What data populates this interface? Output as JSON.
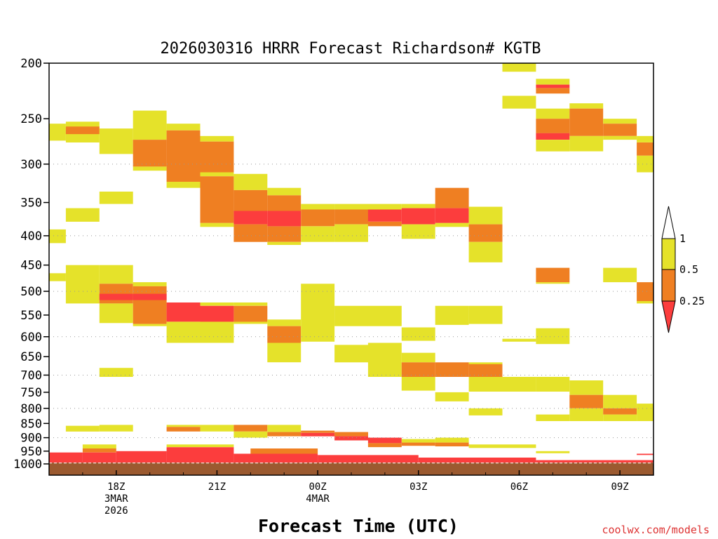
{
  "chart_data": {
    "type": "heatmap",
    "title": "2026030316 HRRR Forecast Richardson# KGTB",
    "xlabel": "Forecast Time (UTC)",
    "ylabel": "",
    "credit": "coolwx.com/models",
    "y_axis": {
      "scale": "log-pressure",
      "inverted": true,
      "range": [
        1000,
        200
      ],
      "ticks": [
        200,
        250,
        300,
        350,
        400,
        450,
        500,
        550,
        600,
        650,
        700,
        750,
        800,
        850,
        900,
        950,
        1000
      ],
      "gridlines": [
        300,
        400,
        500,
        600,
        700,
        800,
        900
      ]
    },
    "x_axis": {
      "start_hour": 16,
      "end_hour": 34,
      "ticks": [
        {
          "hour": 18,
          "lines": [
            "18Z",
            "3MAR",
            "2026"
          ]
        },
        {
          "hour": 21,
          "lines": [
            "21Z"
          ]
        },
        {
          "hour": 24,
          "lines": [
            "00Z",
            "4MAR"
          ]
        },
        {
          "hour": 27,
          "lines": [
            "03Z"
          ]
        },
        {
          "hour": 30,
          "lines": [
            "06Z"
          ]
        },
        {
          "hour": 33,
          "lines": [
            "09Z"
          ]
        }
      ]
    },
    "legend": {
      "placement": "right",
      "labels": [
        "1",
        "0.5",
        "0.25"
      ],
      "colors": {
        "yellow": "#e5e22a",
        "orange": "#ef7f22",
        "red": "#fc3d3d",
        "ground": "#9b5a30"
      }
    },
    "ground_pressure": 995,
    "cells": [
      {
        "c": "y",
        "x0": 16,
        "x1": 16.5,
        "p0": 255,
        "p1": 273
      },
      {
        "c": "y",
        "x0": 16,
        "x1": 16.5,
        "p0": 390,
        "p1": 412
      },
      {
        "c": "y",
        "x0": 16,
        "x1": 16.5,
        "p0": 465,
        "p1": 480
      },
      {
        "c": "y",
        "x0": 16.5,
        "x1": 17.5,
        "p0": 253,
        "p1": 275
      },
      {
        "c": "o",
        "x0": 16.5,
        "x1": 17.5,
        "p0": 258,
        "p1": 266
      },
      {
        "c": "y",
        "x0": 16.5,
        "x1": 17.5,
        "p0": 358,
        "p1": 378
      },
      {
        "c": "y",
        "x0": 16.5,
        "x1": 17.5,
        "p0": 450,
        "p1": 525
      },
      {
        "c": "y",
        "x0": 16.5,
        "x1": 17.5,
        "p0": 858,
        "p1": 878
      },
      {
        "c": "y",
        "x0": 17.5,
        "x1": 18.5,
        "p0": 260,
        "p1": 288
      },
      {
        "c": "y",
        "x0": 17.5,
        "x1": 18.5,
        "p0": 335,
        "p1": 352
      },
      {
        "c": "y",
        "x0": 17.5,
        "x1": 18.5,
        "p0": 450,
        "p1": 485
      },
      {
        "c": "o",
        "x0": 17.5,
        "x1": 18.5,
        "p0": 485,
        "p1": 525
      },
      {
        "c": "r",
        "x0": 17.5,
        "x1": 18.5,
        "p0": 505,
        "p1": 518
      },
      {
        "c": "y",
        "x0": 17.5,
        "x1": 18.5,
        "p0": 525,
        "p1": 568
      },
      {
        "c": "y",
        "x0": 17.5,
        "x1": 18.5,
        "p0": 680,
        "p1": 705
      },
      {
        "c": "y",
        "x0": 17.5,
        "x1": 18.5,
        "p0": 855,
        "p1": 878
      },
      {
        "c": "y",
        "x0": 18.5,
        "x1": 19.5,
        "p0": 242,
        "p1": 272
      },
      {
        "c": "o",
        "x0": 18.5,
        "x1": 19.5,
        "p0": 272,
        "p1": 303
      },
      {
        "c": "y",
        "x0": 18.5,
        "x1": 19.5,
        "p0": 303,
        "p1": 308
      },
      {
        "c": "y",
        "x0": 18.5,
        "x1": 19.5,
        "p0": 482,
        "p1": 490
      },
      {
        "c": "o",
        "x0": 18.5,
        "x1": 19.5,
        "p0": 490,
        "p1": 570
      },
      {
        "c": "r",
        "x0": 18.5,
        "x1": 19.5,
        "p0": 505,
        "p1": 518
      },
      {
        "c": "y",
        "x0": 18.5,
        "x1": 19.5,
        "p0": 570,
        "p1": 575
      },
      {
        "c": "y",
        "x0": 19.5,
        "x1": 20.5,
        "p0": 255,
        "p1": 262
      },
      {
        "c": "o",
        "x0": 19.5,
        "x1": 20.5,
        "p0": 262,
        "p1": 322
      },
      {
        "c": "y",
        "x0": 19.5,
        "x1": 20.5,
        "p0": 322,
        "p1": 330
      },
      {
        "c": "r",
        "x0": 19.5,
        "x1": 20.5,
        "p0": 523,
        "p1": 565
      },
      {
        "c": "y",
        "x0": 19.5,
        "x1": 20.5,
        "p0": 565,
        "p1": 615
      },
      {
        "c": "y",
        "x0": 19.5,
        "x1": 20.5,
        "p0": 855,
        "p1": 862
      },
      {
        "c": "o",
        "x0": 19.5,
        "x1": 20.5,
        "p0": 862,
        "p1": 878
      },
      {
        "c": "y",
        "x0": 20.5,
        "x1": 21.5,
        "p0": 268,
        "p1": 274
      },
      {
        "c": "o",
        "x0": 20.5,
        "x1": 21.5,
        "p0": 274,
        "p1": 310
      },
      {
        "c": "y",
        "x0": 20.5,
        "x1": 21.5,
        "p0": 310,
        "p1": 315
      },
      {
        "c": "o",
        "x0": 20.5,
        "x1": 21.5,
        "p0": 315,
        "p1": 380
      },
      {
        "c": "y",
        "x0": 20.5,
        "x1": 21.5,
        "p0": 380,
        "p1": 386
      },
      {
        "c": "y",
        "x0": 20.5,
        "x1": 21.5,
        "p0": 523,
        "p1": 530
      },
      {
        "c": "r",
        "x0": 20.5,
        "x1": 21.5,
        "p0": 530,
        "p1": 565
      },
      {
        "c": "y",
        "x0": 20.5,
        "x1": 21.5,
        "p0": 565,
        "p1": 615
      },
      {
        "c": "y",
        "x0": 20.5,
        "x1": 21.5,
        "p0": 855,
        "p1": 878
      },
      {
        "c": "y",
        "x0": 21.5,
        "x1": 22.5,
        "p0": 312,
        "p1": 333
      },
      {
        "c": "o",
        "x0": 21.5,
        "x1": 22.5,
        "p0": 333,
        "p1": 362
      },
      {
        "c": "r",
        "x0": 21.5,
        "x1": 22.5,
        "p0": 362,
        "p1": 382
      },
      {
        "c": "o",
        "x0": 21.5,
        "x1": 22.5,
        "p0": 382,
        "p1": 410
      },
      {
        "c": "y",
        "x0": 21.5,
        "x1": 22.5,
        "p0": 523,
        "p1": 530
      },
      {
        "c": "o",
        "x0": 21.5,
        "x1": 22.5,
        "p0": 530,
        "p1": 565
      },
      {
        "c": "y",
        "x0": 21.5,
        "x1": 22.5,
        "p0": 565,
        "p1": 570
      },
      {
        "c": "o",
        "x0": 21.5,
        "x1": 22.5,
        "p0": 855,
        "p1": 878
      },
      {
        "c": "y",
        "x0": 21.5,
        "x1": 22.5,
        "p0": 878,
        "p1": 900
      },
      {
        "c": "y",
        "x0": 22.5,
        "x1": 23.5,
        "p0": 330,
        "p1": 340
      },
      {
        "c": "o",
        "x0": 22.5,
        "x1": 23.5,
        "p0": 340,
        "p1": 362
      },
      {
        "c": "r",
        "x0": 22.5,
        "x1": 23.5,
        "p0": 362,
        "p1": 385
      },
      {
        "c": "o",
        "x0": 22.5,
        "x1": 23.5,
        "p0": 385,
        "p1": 410
      },
      {
        "c": "y",
        "x0": 22.5,
        "x1": 23.5,
        "p0": 410,
        "p1": 415
      },
      {
        "c": "y",
        "x0": 22.5,
        "x1": 23.5,
        "p0": 560,
        "p1": 575
      },
      {
        "c": "o",
        "x0": 22.5,
        "x1": 23.5,
        "p0": 575,
        "p1": 615
      },
      {
        "c": "y",
        "x0": 22.5,
        "x1": 23.5,
        "p0": 615,
        "p1": 665
      },
      {
        "c": "y",
        "x0": 22.5,
        "x1": 23.5,
        "p0": 855,
        "p1": 880
      },
      {
        "c": "o",
        "x0": 22.5,
        "x1": 23.5,
        "p0": 880,
        "p1": 895
      },
      {
        "c": "y",
        "x0": 23.5,
        "x1": 24.5,
        "p0": 352,
        "p1": 360
      },
      {
        "c": "o",
        "x0": 23.5,
        "x1": 24.5,
        "p0": 360,
        "p1": 385
      },
      {
        "c": "y",
        "x0": 23.5,
        "x1": 24.5,
        "p0": 385,
        "p1": 410
      },
      {
        "c": "y",
        "x0": 23.5,
        "x1": 24.5,
        "p0": 485,
        "p1": 612
      },
      {
        "c": "o",
        "x0": 23.5,
        "x1": 24.5,
        "p0": 875,
        "p1": 883
      },
      {
        "c": "r",
        "x0": 23.5,
        "x1": 24.5,
        "p0": 883,
        "p1": 895
      },
      {
        "c": "y",
        "x0": 24.5,
        "x1": 25.5,
        "p0": 352,
        "p1": 360
      },
      {
        "c": "o",
        "x0": 24.5,
        "x1": 25.5,
        "p0": 360,
        "p1": 382
      },
      {
        "c": "y",
        "x0": 24.5,
        "x1": 25.5,
        "p0": 382,
        "p1": 410
      },
      {
        "c": "y",
        "x0": 24.5,
        "x1": 25.5,
        "p0": 530,
        "p1": 575
      },
      {
        "c": "y",
        "x0": 24.5,
        "x1": 25.5,
        "p0": 620,
        "p1": 665
      },
      {
        "c": "o",
        "x0": 24.5,
        "x1": 25.5,
        "p0": 880,
        "p1": 895
      },
      {
        "c": "r",
        "x0": 24.5,
        "x1": 25.5,
        "p0": 895,
        "p1": 910
      },
      {
        "c": "y",
        "x0": 25.5,
        "x1": 26.5,
        "p0": 352,
        "p1": 360
      },
      {
        "c": "r",
        "x0": 25.5,
        "x1": 26.5,
        "p0": 360,
        "p1": 378
      },
      {
        "c": "o",
        "x0": 25.5,
        "x1": 26.5,
        "p0": 378,
        "p1": 385
      },
      {
        "c": "y",
        "x0": 25.5,
        "x1": 26.5,
        "p0": 530,
        "p1": 575
      },
      {
        "c": "y",
        "x0": 25.5,
        "x1": 26.5,
        "p0": 615,
        "p1": 705
      },
      {
        "c": "r",
        "x0": 25.5,
        "x1": 26.5,
        "p0": 900,
        "p1": 920
      },
      {
        "c": "o",
        "x0": 25.5,
        "x1": 26.5,
        "p0": 920,
        "p1": 935
      },
      {
        "c": "y",
        "x0": 26.5,
        "x1": 27.5,
        "p0": 352,
        "p1": 358
      },
      {
        "c": "r",
        "x0": 26.5,
        "x1": 27.5,
        "p0": 358,
        "p1": 382
      },
      {
        "c": "y",
        "x0": 26.5,
        "x1": 27.5,
        "p0": 382,
        "p1": 405
      },
      {
        "c": "y",
        "x0": 26.5,
        "x1": 27.5,
        "p0": 578,
        "p1": 610
      },
      {
        "c": "y",
        "x0": 26.5,
        "x1": 27.5,
        "p0": 640,
        "p1": 665
      },
      {
        "c": "o",
        "x0": 26.5,
        "x1": 27.5,
        "p0": 665,
        "p1": 705
      },
      {
        "c": "y",
        "x0": 26.5,
        "x1": 27.5,
        "p0": 705,
        "p1": 745
      },
      {
        "c": "y",
        "x0": 26.5,
        "x1": 27.5,
        "p0": 905,
        "p1": 918
      },
      {
        "c": "o",
        "x0": 26.5,
        "x1": 27.5,
        "p0": 918,
        "p1": 930
      },
      {
        "c": "o",
        "x0": 27.5,
        "x1": 28.5,
        "p0": 330,
        "p1": 358
      },
      {
        "c": "r",
        "x0": 27.5,
        "x1": 28.5,
        "p0": 358,
        "p1": 380
      },
      {
        "c": "y",
        "x0": 27.5,
        "x1": 28.5,
        "p0": 380,
        "p1": 386
      },
      {
        "c": "y",
        "x0": 27.5,
        "x1": 28.5,
        "p0": 530,
        "p1": 572
      },
      {
        "c": "o",
        "x0": 27.5,
        "x1": 28.5,
        "p0": 665,
        "p1": 705
      },
      {
        "c": "y",
        "x0": 27.5,
        "x1": 28.5,
        "p0": 750,
        "p1": 778
      },
      {
        "c": "y",
        "x0": 27.5,
        "x1": 28.5,
        "p0": 900,
        "p1": 918
      },
      {
        "c": "o",
        "x0": 27.5,
        "x1": 28.5,
        "p0": 918,
        "p1": 932
      },
      {
        "c": "y",
        "x0": 28.5,
        "x1": 29.5,
        "p0": 356,
        "p1": 382
      },
      {
        "c": "o",
        "x0": 28.5,
        "x1": 29.5,
        "p0": 382,
        "p1": 410
      },
      {
        "c": "y",
        "x0": 28.5,
        "x1": 29.5,
        "p0": 410,
        "p1": 445
      },
      {
        "c": "y",
        "x0": 28.5,
        "x1": 29.5,
        "p0": 530,
        "p1": 570
      },
      {
        "c": "y",
        "x0": 28.5,
        "x1": 29.5,
        "p0": 665,
        "p1": 670
      },
      {
        "c": "o",
        "x0": 28.5,
        "x1": 29.5,
        "p0": 670,
        "p1": 705
      },
      {
        "c": "y",
        "x0": 28.5,
        "x1": 29.5,
        "p0": 705,
        "p1": 748
      },
      {
        "c": "y",
        "x0": 28.5,
        "x1": 29.5,
        "p0": 800,
        "p1": 823
      },
      {
        "c": "y",
        "x0": 28.5,
        "x1": 29.5,
        "p0": 925,
        "p1": 938
      },
      {
        "c": "y",
        "x0": 29.5,
        "x1": 30.5,
        "p0": 200,
        "p1": 207
      },
      {
        "c": "y",
        "x0": 29.5,
        "x1": 30.5,
        "p0": 228,
        "p1": 240
      },
      {
        "c": "y",
        "x0": 29.5,
        "x1": 30.5,
        "p0": 605,
        "p1": 612
      },
      {
        "c": "y",
        "x0": 29.5,
        "x1": 30.5,
        "p0": 705,
        "p1": 748
      },
      {
        "c": "y",
        "x0": 29.5,
        "x1": 30.5,
        "p0": 925,
        "p1": 938
      },
      {
        "c": "y",
        "x0": 30.5,
        "x1": 31.5,
        "p0": 213,
        "p1": 218
      },
      {
        "c": "r",
        "x0": 30.5,
        "x1": 31.5,
        "p0": 218,
        "p1": 221
      },
      {
        "c": "o",
        "x0": 30.5,
        "x1": 31.5,
        "p0": 221,
        "p1": 226
      },
      {
        "c": "y",
        "x0": 30.5,
        "x1": 31.5,
        "p0": 240,
        "p1": 250
      },
      {
        "c": "o",
        "x0": 30.5,
        "x1": 31.5,
        "p0": 250,
        "p1": 265
      },
      {
        "c": "r",
        "x0": 30.5,
        "x1": 31.5,
        "p0": 265,
        "p1": 272
      },
      {
        "c": "y",
        "x0": 30.5,
        "x1": 31.5,
        "p0": 272,
        "p1": 285
      },
      {
        "c": "o",
        "x0": 30.5,
        "x1": 31.5,
        "p0": 455,
        "p1": 482
      },
      {
        "c": "y",
        "x0": 30.5,
        "x1": 31.5,
        "p0": 482,
        "p1": 485
      },
      {
        "c": "y",
        "x0": 30.5,
        "x1": 31.5,
        "p0": 580,
        "p1": 618
      },
      {
        "c": "y",
        "x0": 30.5,
        "x1": 31.5,
        "p0": 705,
        "p1": 748
      },
      {
        "c": "y",
        "x0": 30.5,
        "x1": 31.5,
        "p0": 820,
        "p1": 842
      },
      {
        "c": "y",
        "x0": 30.5,
        "x1": 31.5,
        "p0": 950,
        "p1": 958
      },
      {
        "c": "y",
        "x0": 31.5,
        "x1": 32.5,
        "p0": 235,
        "p1": 240
      },
      {
        "c": "o",
        "x0": 31.5,
        "x1": 32.5,
        "p0": 240,
        "p1": 268
      },
      {
        "c": "y",
        "x0": 31.5,
        "x1": 32.5,
        "p0": 268,
        "p1": 285
      },
      {
        "c": "y",
        "x0": 31.5,
        "x1": 32.5,
        "p0": 715,
        "p1": 758
      },
      {
        "c": "o",
        "x0": 31.5,
        "x1": 32.5,
        "p0": 758,
        "p1": 800
      },
      {
        "c": "y",
        "x0": 31.5,
        "x1": 32.5,
        "p0": 800,
        "p1": 842
      },
      {
        "c": "y",
        "x0": 32.5,
        "x1": 33.5,
        "p0": 250,
        "p1": 255
      },
      {
        "c": "o",
        "x0": 32.5,
        "x1": 33.5,
        "p0": 255,
        "p1": 268
      },
      {
        "c": "y",
        "x0": 32.5,
        "x1": 33.5,
        "p0": 268,
        "p1": 272
      },
      {
        "c": "y",
        "x0": 32.5,
        "x1": 33.5,
        "p0": 455,
        "p1": 482
      },
      {
        "c": "y",
        "x0": 32.5,
        "x1": 33.5,
        "p0": 758,
        "p1": 800
      },
      {
        "c": "o",
        "x0": 32.5,
        "x1": 33.5,
        "p0": 800,
        "p1": 820
      },
      {
        "c": "y",
        "x0": 32.5,
        "x1": 33.5,
        "p0": 820,
        "p1": 842
      },
      {
        "c": "y",
        "x0": 33.5,
        "x1": 34,
        "p0": 268,
        "p1": 275
      },
      {
        "c": "o",
        "x0": 33.5,
        "x1": 34,
        "p0": 275,
        "p1": 290
      },
      {
        "c": "y",
        "x0": 33.5,
        "x1": 34,
        "p0": 290,
        "p1": 310
      },
      {
        "c": "o",
        "x0": 33.5,
        "x1": 34,
        "p0": 482,
        "p1": 520
      },
      {
        "c": "y",
        "x0": 33.5,
        "x1": 34,
        "p0": 520,
        "p1": 525
      },
      {
        "c": "y",
        "x0": 33.5,
        "x1": 34,
        "p0": 785,
        "p1": 842
      },
      {
        "c": "r",
        "x0": 33.5,
        "x1": 34,
        "p0": 960,
        "p1": 965
      },
      {
        "c": "y",
        "x0": 17,
        "x1": 18,
        "p0": 925,
        "p1": 940
      },
      {
        "c": "o",
        "x0": 17,
        "x1": 18,
        "p0": 940,
        "p1": 955
      },
      {
        "c": "r",
        "x0": 17,
        "x1": 18,
        "p0": 955,
        "p1": 995
      },
      {
        "c": "r",
        "x0": 16,
        "x1": 17,
        "p0": 955,
        "p1": 995
      },
      {
        "c": "r",
        "x0": 18,
        "x1": 19.5,
        "p0": 950,
        "p1": 995
      },
      {
        "c": "y",
        "x0": 19.5,
        "x1": 21.5,
        "p0": 925,
        "p1": 935
      },
      {
        "c": "r",
        "x0": 19.5,
        "x1": 21.5,
        "p0": 935,
        "p1": 995
      },
      {
        "c": "r",
        "x0": 21.5,
        "x1": 24,
        "p0": 960,
        "p1": 995
      },
      {
        "c": "o",
        "x0": 22,
        "x1": 24,
        "p0": 940,
        "p1": 960
      },
      {
        "c": "r",
        "x0": 24,
        "x1": 27,
        "p0": 965,
        "p1": 995
      },
      {
        "c": "r",
        "x0": 27,
        "x1": 30.5,
        "p0": 975,
        "p1": 995
      },
      {
        "c": "r",
        "x0": 30.5,
        "x1": 34,
        "p0": 985,
        "p1": 995
      }
    ]
  }
}
